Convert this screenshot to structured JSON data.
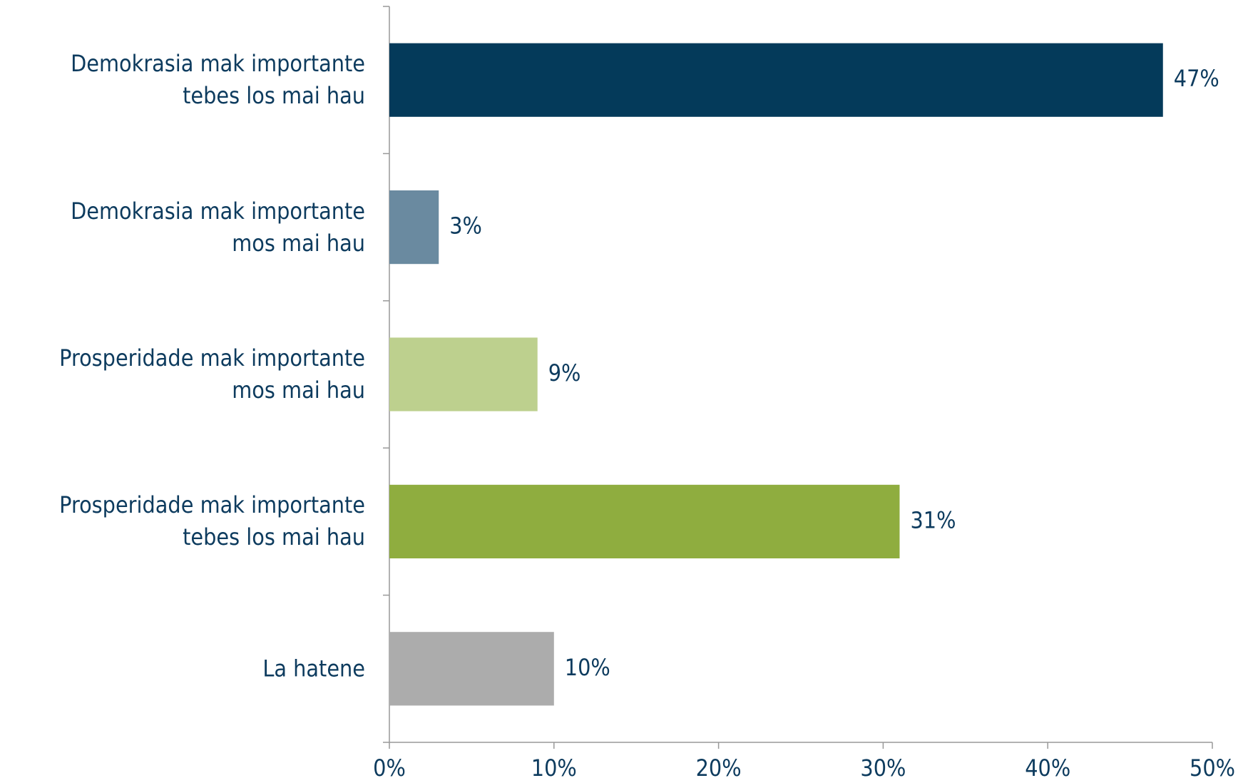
{
  "chart_data": {
    "type": "bar",
    "orientation": "horizontal",
    "categories": [
      "Demokrasia mak importante\ntebes los mai hau",
      "Demokrasia mak importante\nmos mai hau",
      "Prosperidade mak importante\nmos mai hau",
      "Prosperidade mak importante\ntebes los mai hau",
      "La hatene"
    ],
    "values": [
      47,
      3,
      9,
      31,
      10
    ],
    "value_labels": [
      "47%",
      "3%",
      "9%",
      "31%",
      "10%"
    ],
    "colors": [
      "#043a5a",
      "#6a8aa0",
      "#bdd08e",
      "#8fad3f",
      "#acacac"
    ],
    "xlim": [
      0,
      50
    ],
    "xticks": [
      {
        "value": 0,
        "label": "0%"
      },
      {
        "value": 10,
        "label": "10%"
      },
      {
        "value": 20,
        "label": "20%"
      },
      {
        "value": 30,
        "label": "30%"
      },
      {
        "value": 40,
        "label": "40%"
      },
      {
        "value": 50,
        "label": "50%"
      }
    ],
    "grid": false
  }
}
